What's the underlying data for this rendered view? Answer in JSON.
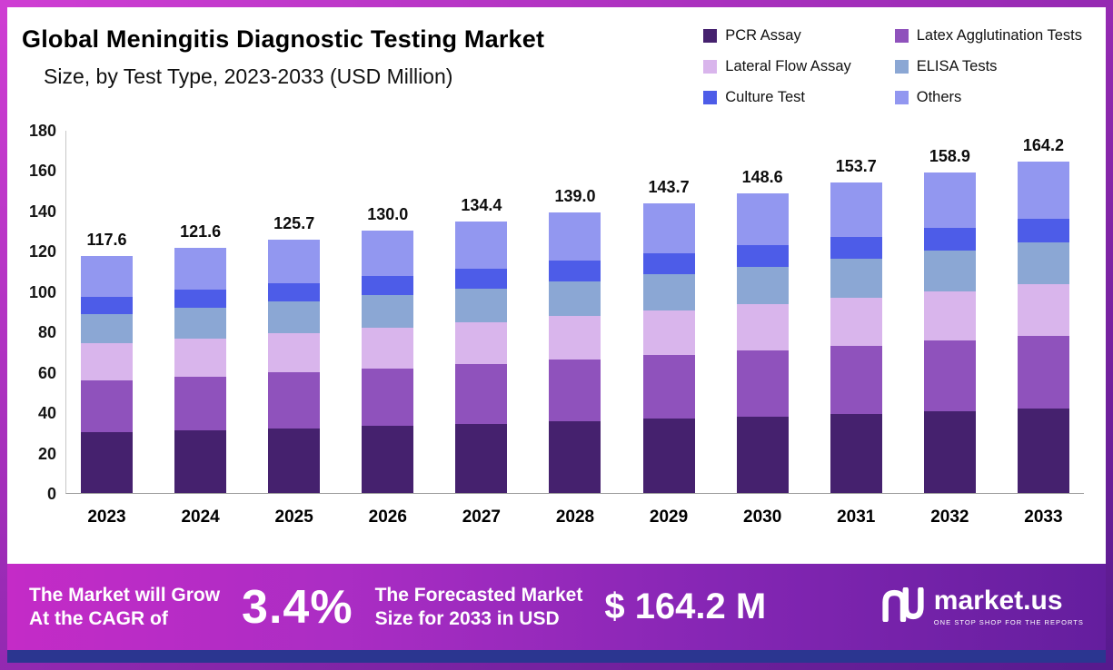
{
  "header": {
    "title": "Global Meningitis Diagnostic Testing Market",
    "subtitle": "Size, by Test Type, 2023-2033 (USD Million)"
  },
  "chart_data": {
    "type": "bar",
    "stacked": true,
    "title": "Global Meningitis Diagnostic Testing Market Size, by Test Type, 2023-2033 (USD Million)",
    "xlabel": "",
    "ylabel": "",
    "categories": [
      "2023",
      "2024",
      "2025",
      "2026",
      "2027",
      "2028",
      "2029",
      "2030",
      "2031",
      "2032",
      "2033"
    ],
    "totals": [
      117.6,
      121.6,
      125.7,
      130.0,
      134.4,
      139.0,
      143.7,
      148.6,
      153.7,
      158.9,
      164.2
    ],
    "series": [
      {
        "name": "PCR Assay",
        "color": "#45216e",
        "values": [
          30.0,
          31.0,
          32.1,
          33.2,
          34.3,
          35.5,
          36.7,
          37.9,
          39.2,
          40.5,
          41.9
        ]
      },
      {
        "name": "Latex Agglutination Tests",
        "color": "#8f52bc",
        "values": [
          25.9,
          26.8,
          27.7,
          28.6,
          29.6,
          30.6,
          31.6,
          32.7,
          33.8,
          35.0,
          36.1
        ]
      },
      {
        "name": "Lateral Flow Assay",
        "color": "#d9b5ec",
        "values": [
          18.2,
          18.8,
          19.5,
          20.2,
          20.8,
          21.5,
          22.3,
          23.0,
          23.8,
          24.6,
          25.5
        ]
      },
      {
        "name": "ELISA Tests",
        "color": "#8ba7d4",
        "values": [
          14.7,
          15.2,
          15.7,
          16.3,
          16.8,
          17.4,
          18.0,
          18.6,
          19.2,
          19.9,
          20.5
        ]
      },
      {
        "name": "Culture Test",
        "color": "#4d5ce8",
        "values": [
          8.5,
          8.8,
          9.0,
          9.4,
          9.7,
          10.0,
          10.3,
          10.7,
          11.1,
          11.4,
          11.8
        ]
      },
      {
        "name": "Others",
        "color": "#9297f0",
        "values": [
          20.3,
          21.0,
          21.7,
          22.3,
          23.2,
          24.0,
          24.8,
          25.7,
          26.6,
          27.5,
          28.4
        ]
      }
    ],
    "ylim": [
      0,
      180
    ],
    "yticks": [
      0,
      20,
      40,
      60,
      80,
      100,
      120,
      140,
      160,
      180
    ],
    "legend_position": "top-right",
    "grid": false,
    "value_labels": "totals-above-bars"
  },
  "banner": {
    "growth_label_line1": "The Market will Grow",
    "growth_label_line2": "At the CAGR of",
    "cagr_value": "3.4%",
    "forecast_label_line1": "The Forecasted Market",
    "forecast_label_line2": "Size for 2033 in USD",
    "forecast_value": "$ 164.2 M",
    "brand_name": "market.us",
    "brand_tagline": "ONE STOP SHOP FOR THE REPORTS"
  },
  "colors": {
    "frame_gradient": [
      "#cf3ed3",
      "#9a2bb5",
      "#571a8e"
    ],
    "banner_gradient": [
      "#c42bc7",
      "#8526b4",
      "#641e9e"
    ],
    "bottom_strip": "#2b3690",
    "text": "#000000",
    "banner_text": "#ffffff"
  }
}
